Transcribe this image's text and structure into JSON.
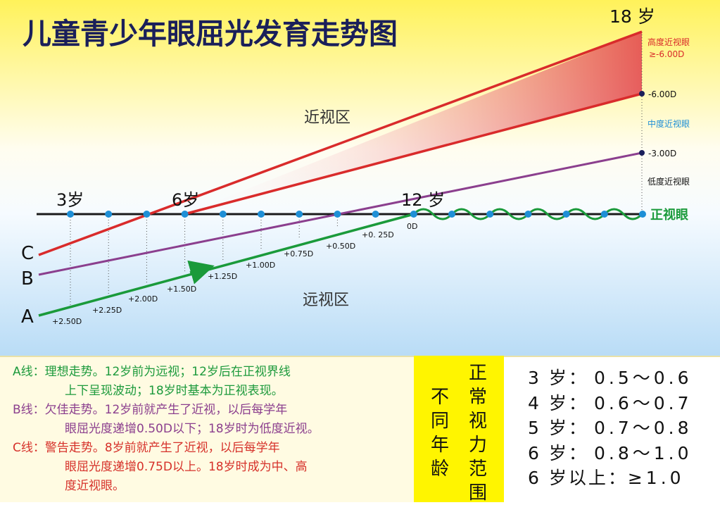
{
  "title": "儿童青少年眼屈光发育走势图",
  "zones": {
    "myopia": "近视区",
    "hyperopia": "远视区"
  },
  "axis_ages": {
    "a3": "3岁",
    "a6": "6岁",
    "a12": "12 岁",
    "a18": "18 岁"
  },
  "line_labels": {
    "a": "A",
    "b": "B",
    "c": "C"
  },
  "diopters": [
    "+2.50D",
    "+2.25D",
    "+2.00D",
    "+1.50D",
    "+1.25D",
    "+1.00D",
    "+0.75D",
    "+0.50D",
    "+0. 25D",
    "0D"
  ],
  "right_scale": {
    "high_label": "高度近视眼",
    "high_value": "≥-6.00D",
    "minus6": "-6.00D",
    "mid": "中度近视眼",
    "minus3": "-3.00D",
    "low": "低度近视眼",
    "normal": "正视眼"
  },
  "legend": {
    "a1": "A线：理想走势。12岁前为远视；12岁后在正视界线",
    "a2": "上下呈现波动；18岁时基本为正视表现。",
    "b1": "B线：欠佳走势。12岁前就产生了近视，以后每学年",
    "b2": "眼屈光度递增0.50D以下；18岁时为低度近视。",
    "c1": "C线：警告走势。8岁前就产生了近视，以后每学年",
    "c2": "眼屈光度递增0.75D以上。18岁时成为中、高",
    "c3": "度近视眼。"
  },
  "vision_title": {
    "col1": "正常视力范围",
    "col2": "不同年龄"
  },
  "vision_table": [
    {
      "age": "3 岁：",
      "range": "0.5～0.6"
    },
    {
      "age": "4 岁：",
      "range": "0.6～0.7"
    },
    {
      "age": "5 岁：",
      "range": "0.7～0.8"
    },
    {
      "age": "6 岁：",
      "range": "0.8～1.0"
    },
    {
      "age": "6 岁以上：",
      "range": "≥1.0"
    }
  ],
  "colors": {
    "line_a": "#1a9a3a",
    "line_b": "#8b3f8e",
    "line_c": "#d92b2b",
    "dot": "#1e8fd6",
    "title": "#1a1f5a"
  }
}
